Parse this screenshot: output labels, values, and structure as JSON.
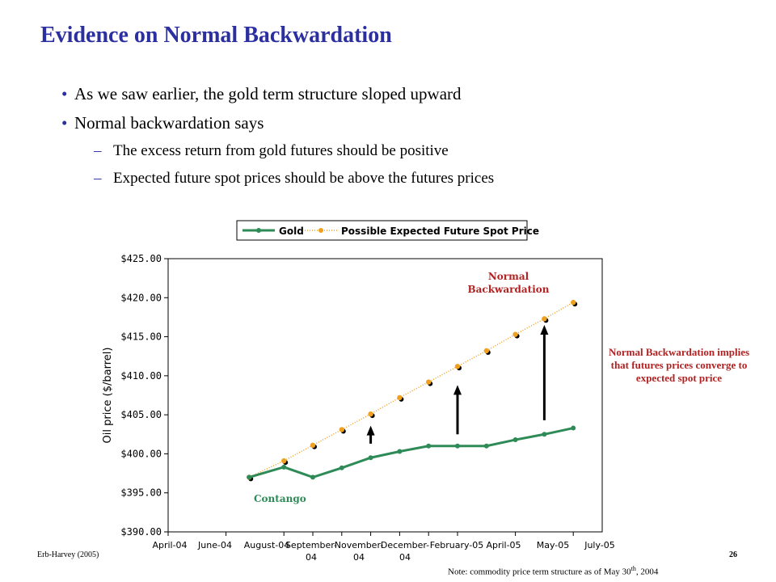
{
  "slide": {
    "title": "Evidence on Normal Backwardation",
    "bullets": [
      {
        "level": 1,
        "text": "As we saw earlier, the gold term structure sloped upward"
      },
      {
        "level": 1,
        "text": "Normal backwardation says"
      },
      {
        "level": 2,
        "text": "The excess return from gold futures should be positive"
      },
      {
        "level": 2,
        "text": "Expected future spot prices should be above the futures prices"
      }
    ],
    "side_note": "Normal Backwardation implies that futures prices converge to expected spot price",
    "footer_left": "Erb-Harvey (2005)",
    "page_number": "26",
    "footnote_main": "Note: commodity price term structure as of May 30",
    "footnote_sup": "th",
    "footnote_tail": ", 2004"
  },
  "chart_data": {
    "type": "line",
    "ylabel": "Oil price ($/barrel)",
    "ylim": [
      390,
      425
    ],
    "yticks": [
      390,
      395,
      400,
      405,
      410,
      415,
      420,
      425
    ],
    "ytick_labels": [
      "$390.00",
      "$395.00",
      "$400.00",
      "$405.00",
      "$410.00",
      "$415.00",
      "$420.00",
      "$425.00"
    ],
    "xlim": [
      0,
      15
    ],
    "xticks": [
      0,
      2,
      4,
      5,
      6,
      7,
      8,
      9,
      10,
      12,
      14
    ],
    "xtick_labels": [
      [
        "April-04"
      ],
      [
        "June-04"
      ],
      [
        "August-04"
      ],
      [
        "September-",
        "04"
      ],
      [
        "November-",
        "04"
      ],
      [
        "December-",
        "04"
      ],
      [
        "February-05"
      ],
      [
        "April-05"
      ],
      [
        "May-05"
      ],
      [
        "July-05"
      ]
    ],
    "xtick_label_positions": [
      0,
      2,
      4,
      6,
      8,
      10,
      12,
      14,
      16,
      18
    ],
    "x_scale_note": "label positions are in half-month axis units",
    "grid": false,
    "legend_position": "top",
    "series": [
      {
        "name": "Gold",
        "color": "#2e8b57",
        "x": [
          2.8,
          4,
          5,
          6,
          7,
          8,
          9,
          10,
          11,
          12,
          13,
          14
        ],
        "values": [
          397.0,
          398.3,
          397.0,
          398.2,
          399.5,
          400.3,
          401.0,
          401.0,
          401.0,
          401.8,
          402.5,
          403.3
        ]
      },
      {
        "name": "Possible Expected Future Spot Price",
        "color": "#f0a020",
        "x": [
          2.8,
          4,
          5,
          6,
          7,
          8,
          9,
          10,
          11,
          12,
          13,
          14
        ],
        "values": [
          397.0,
          399.1,
          401.1,
          403.1,
          405.1,
          407.2,
          409.2,
          411.2,
          413.2,
          415.3,
          417.3,
          419.4
        ]
      }
    ],
    "arrows": [
      {
        "x": 7,
        "from": 401.3,
        "to": 403.4
      },
      {
        "x": 10,
        "from": 402.5,
        "to": 408.6
      },
      {
        "x": 13,
        "from": 404.3,
        "to": 416.3
      }
    ],
    "annotations": [
      {
        "text": "Normal",
        "color": "#b22222"
      },
      {
        "text": "Backwardation",
        "color": "#b22222"
      },
      {
        "text": "Contango",
        "color": "#2e8b57"
      }
    ]
  }
}
